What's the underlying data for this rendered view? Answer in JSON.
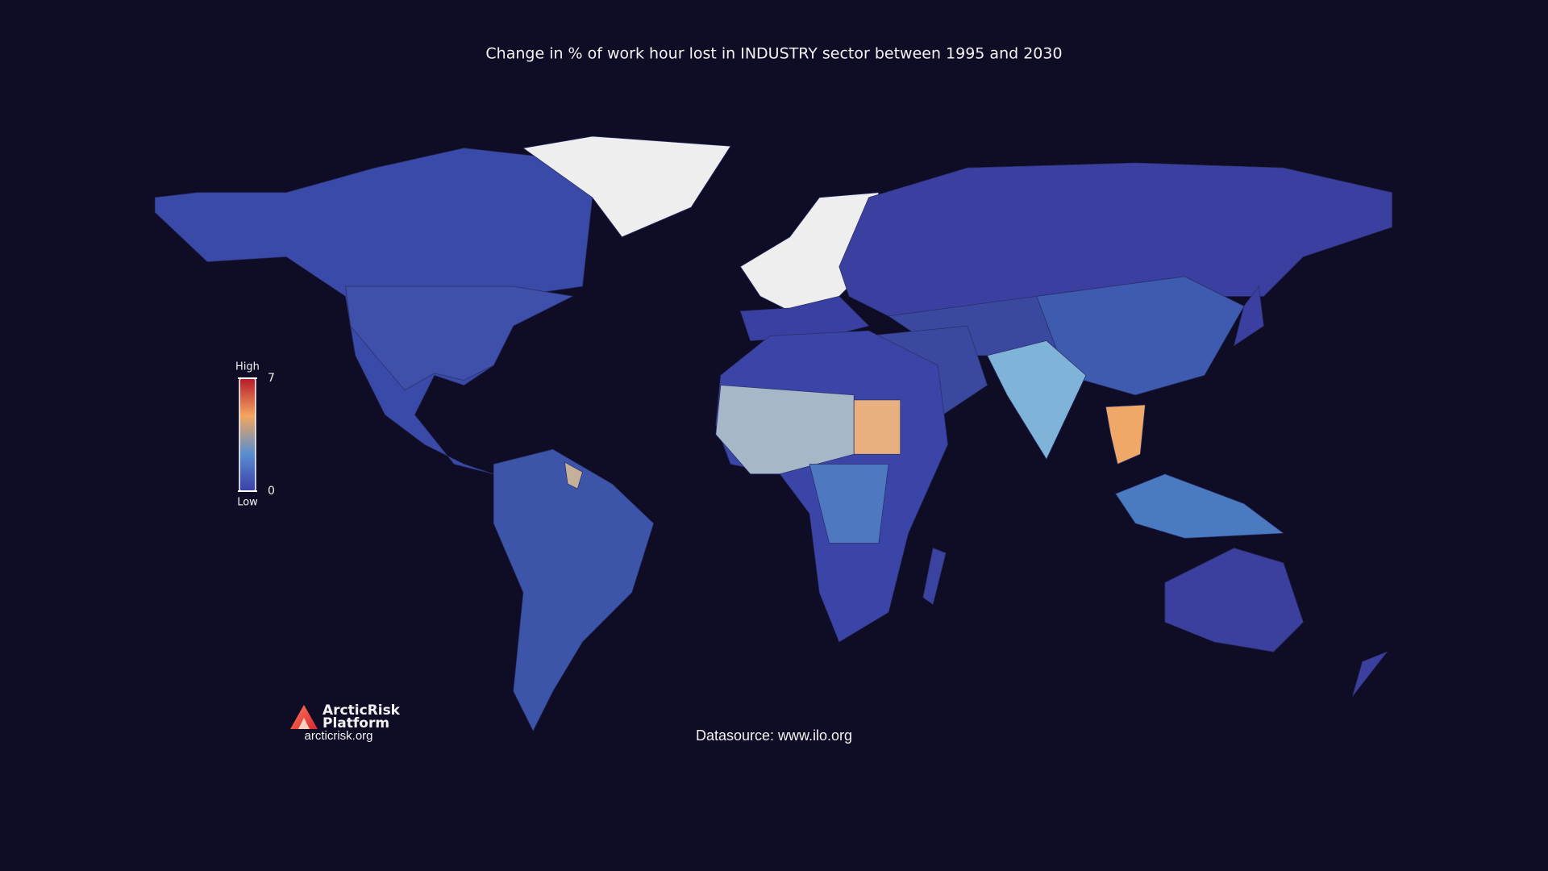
{
  "title": "Change in % of work hour lost in INDUSTRY sector between 1995 and 2030",
  "colorbar": {
    "high_label": "High",
    "low_label": "Low",
    "range": [
      0,
      7
    ],
    "ticks": [
      0,
      7
    ],
    "colors": [
      "#3a3fa8",
      "#5a8fd0",
      "#f3a65e",
      "#b5192a"
    ]
  },
  "datasource": "Datasource: www.ilo.org",
  "logo": {
    "name_line1": "ArcticRisk",
    "name_line2": "Platform",
    "url": "arcticrisk.org"
  }
}
